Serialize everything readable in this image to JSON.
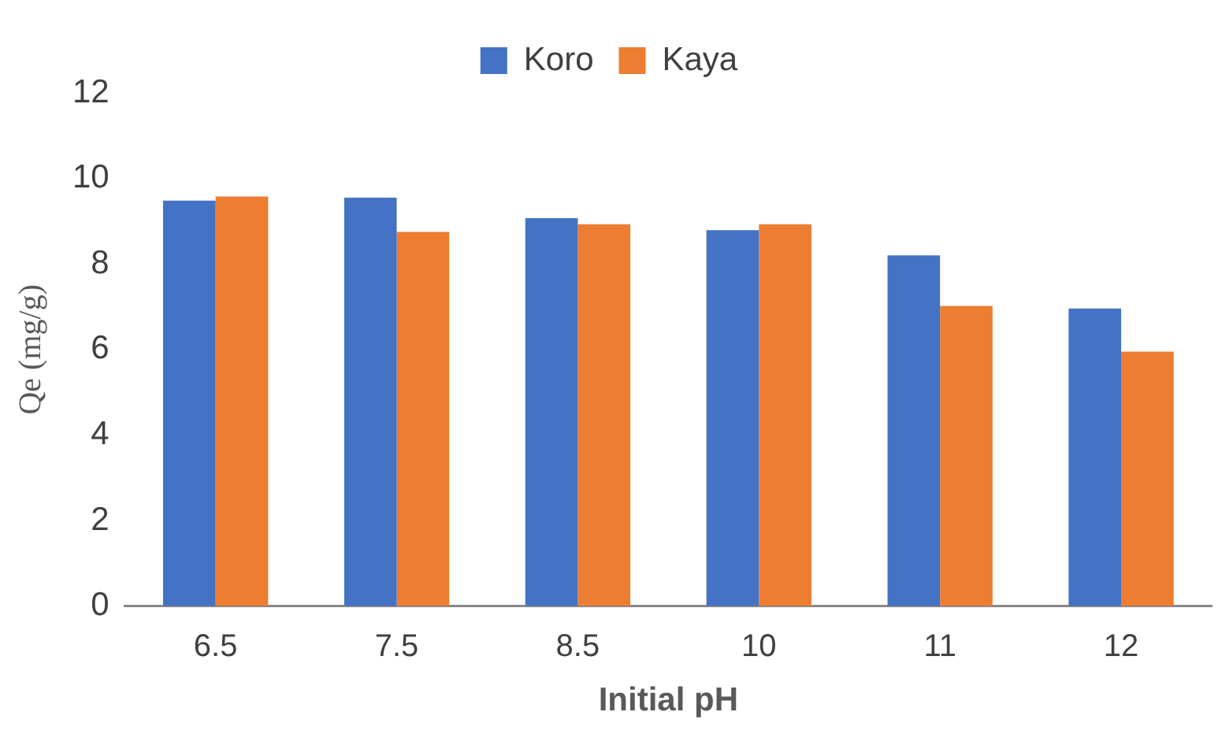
{
  "chart_data": {
    "type": "bar",
    "xlabel": "Initial pH",
    "ylabel": "Qe (mg/g)",
    "categories": [
      "6.5",
      "7.5",
      "8.5",
      "10",
      "11",
      "12"
    ],
    "series": [
      {
        "name": "Koro",
        "color": "#4472c4",
        "values": [
          9.48,
          9.55,
          9.07,
          8.79,
          8.2,
          6.96
        ]
      },
      {
        "name": "Kaya",
        "color": "#ed7d31",
        "values": [
          9.58,
          8.75,
          8.93,
          8.93,
          7.02,
          5.95
        ]
      }
    ],
    "ylim": [
      0,
      12
    ],
    "yticks": [
      0,
      2,
      4,
      6,
      8,
      10,
      12
    ],
    "grid": false,
    "legend": "top"
  }
}
